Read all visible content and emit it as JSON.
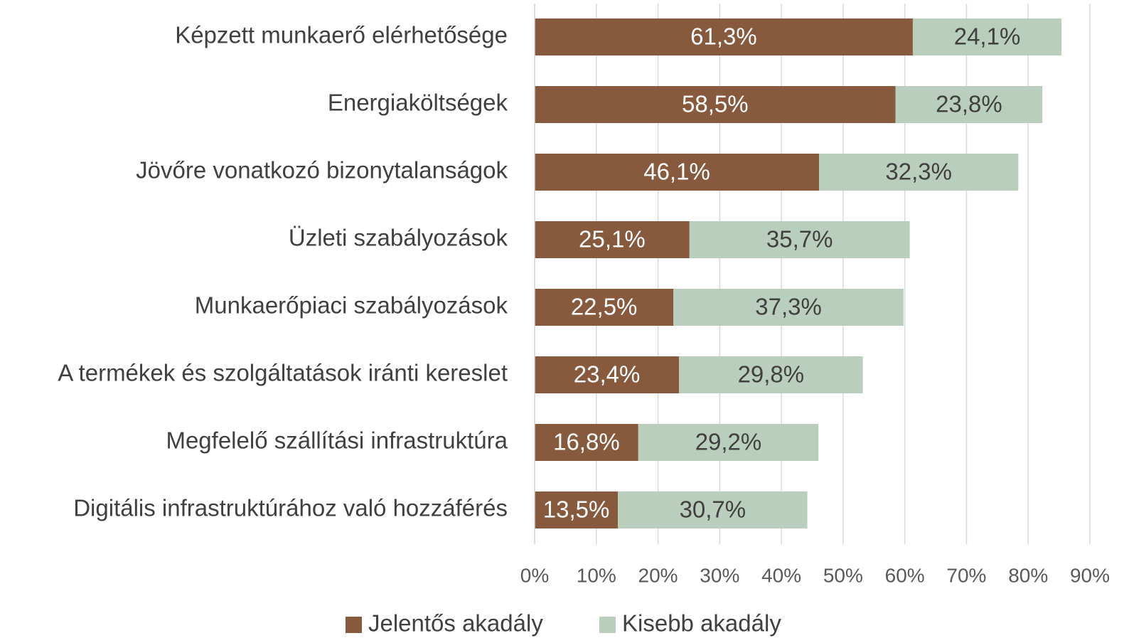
{
  "chart_data": {
    "type": "stacked_bar_horizontal",
    "categories": [
      "Képzett munkaerő elérhetősége",
      "Energiaköltségek",
      "Jövőre vonatkozó bizonytalanságok",
      "Üzleti szabályozások",
      "Munkaerőpiaci szabályozások",
      "A termékek és szolgáltatások iránti kereslet",
      "Megfelelő szállítási infrastruktúra",
      "Digitális infrastruktúrához való hozzáférés"
    ],
    "series": [
      {
        "name": "Jelentős akadály",
        "color": "#875a3e",
        "values": [
          61.3,
          58.5,
          46.1,
          25.1,
          22.5,
          23.4,
          16.8,
          13.5
        ],
        "value_labels": [
          "61,3%",
          "58,5%",
          "46,1%",
          "25,1%",
          "22,5%",
          "23,4%",
          "16,8%",
          "13,5%"
        ]
      },
      {
        "name": "Kisebb akadály",
        "color": "#b9cebc",
        "values": [
          24.1,
          23.8,
          32.3,
          35.7,
          37.3,
          29.8,
          29.2,
          30.7
        ],
        "value_labels": [
          "24,1%",
          "23,8%",
          "32,3%",
          "35,7%",
          "37,3%",
          "29,8%",
          "29,2%",
          "30,7%"
        ]
      }
    ],
    "xlim": [
      0,
      90
    ],
    "xticks": [
      {
        "value": 0,
        "label": "0%"
      },
      {
        "value": 10,
        "label": "10%"
      },
      {
        "value": 20,
        "label": "20%"
      },
      {
        "value": 30,
        "label": "30%"
      },
      {
        "value": 40,
        "label": "40%"
      },
      {
        "value": 50,
        "label": "50%"
      },
      {
        "value": 60,
        "label": "60%"
      },
      {
        "value": 70,
        "label": "70%"
      },
      {
        "value": 80,
        "label": "80%"
      },
      {
        "value": 90,
        "label": "90%"
      }
    ],
    "grid": true,
    "legend": "bottom"
  }
}
